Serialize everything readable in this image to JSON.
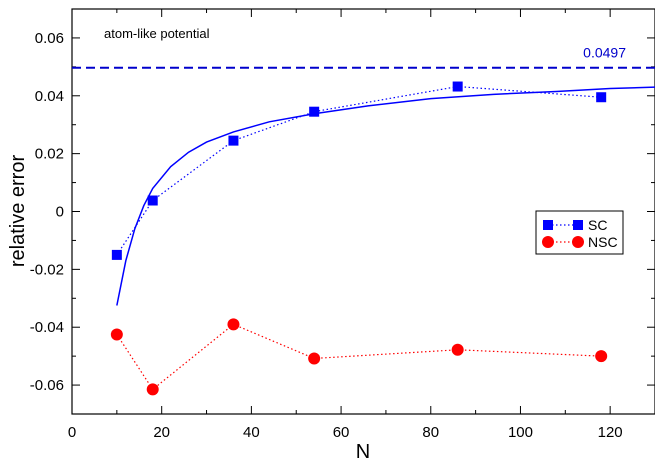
{
  "chart_data": {
    "type": "scatter",
    "annotation": "atom-like potential",
    "xlabel": "N",
    "ylabel": "relative error",
    "xlim": [
      0,
      130
    ],
    "ylim": [
      -0.07,
      0.07
    ],
    "x_ticks": [
      0,
      20,
      40,
      60,
      80,
      100,
      120
    ],
    "x_tick_labels": [
      "0",
      "20",
      "40",
      "60",
      "80",
      "100",
      "120"
    ],
    "y_ticks": [
      0.06,
      0.04,
      0.02,
      0,
      -0.02,
      -0.04,
      -0.06
    ],
    "y_tick_labels": [
      "0.06",
      "0.04",
      "0.02",
      "0",
      "-0.02",
      "-0.04",
      "-0.06"
    ],
    "series": [
      {
        "name": "SC",
        "marker": "square",
        "line": "dotted",
        "color": "#0000ff",
        "x": [
          10,
          18,
          36,
          54,
          86,
          118
        ],
        "y": [
          -0.015,
          0.0038,
          0.0245,
          0.0345,
          0.0432,
          0.0395
        ]
      },
      {
        "name": "NSC",
        "marker": "circle",
        "line": "dotted",
        "color": "#ff0000",
        "x": [
          10,
          18,
          36,
          54,
          86,
          118
        ],
        "y": [
          -0.0425,
          -0.0615,
          -0.039,
          -0.0508,
          -0.0478,
          -0.05
        ]
      }
    ],
    "fit_curve": {
      "color": "#0000ff",
      "x": [
        10,
        12,
        14,
        16,
        18,
        22,
        26,
        30,
        36,
        44,
        54,
        66,
        80,
        94,
        108,
        120,
        130
      ],
      "y": [
        -0.0325,
        -0.017,
        -0.006,
        0.002,
        0.008,
        0.0155,
        0.0205,
        0.024,
        0.0275,
        0.031,
        0.0338,
        0.0365,
        0.039,
        0.0405,
        0.0415,
        0.0425,
        0.043
      ]
    },
    "reference_line": {
      "y": 0.0497,
      "label": "0.0497",
      "style": "dashed",
      "color": "#0000cc"
    },
    "legend": {
      "position": "right",
      "entries": [
        "SC",
        "NSC"
      ]
    },
    "grid": false
  }
}
